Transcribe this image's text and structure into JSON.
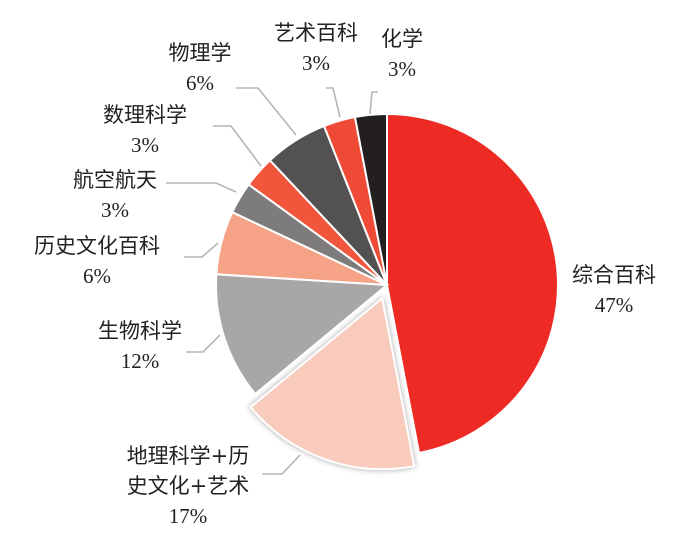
{
  "chart_data": {
    "type": "pie",
    "title": "",
    "slices": [
      {
        "label": "综合百科",
        "value": 47,
        "display": "47%",
        "color": "#ee2a24"
      },
      {
        "label": "地理科学+历史文化+艺术",
        "label_lines": [
          "地理科学+历",
          "史文化+艺术"
        ],
        "value": 17,
        "display": "17%",
        "color": "#f9cbbd",
        "exploded": true
      },
      {
        "label": "生物科学",
        "value": 12,
        "display": "12%",
        "color": "#a8a6a7"
      },
      {
        "label": "历史文化百科",
        "value": 6,
        "display": "6%",
        "color": "#f6a286"
      },
      {
        "label": "航空航天",
        "value": 3,
        "display": "3%",
        "color": "#7d7b7c"
      },
      {
        "label": "数理科学",
        "value": 3,
        "display": "3%",
        "color": "#f1563c"
      },
      {
        "label": "物理学",
        "value": 6,
        "display": "6%",
        "color": "#535152"
      },
      {
        "label": "艺术百科",
        "value": 3,
        "display": "3%",
        "color": "#ef4a36"
      },
      {
        "label": "化学",
        "value": 3,
        "display": "3%",
        "color": "#231f20"
      }
    ]
  }
}
